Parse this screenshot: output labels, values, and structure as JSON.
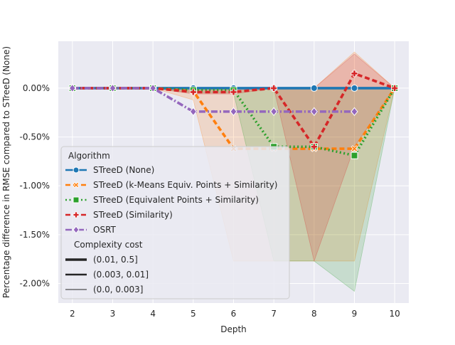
{
  "chart_data": {
    "type": "line",
    "xlabel": "Depth",
    "ylabel": "Percentage difference in RMSE compared to STreeD (None)",
    "x_ticks": [
      2,
      3,
      4,
      5,
      6,
      7,
      8,
      9,
      10
    ],
    "y_ticks": [
      {
        "value": 0.0,
        "label": "0.00%"
      },
      {
        "value": -0.5,
        "label": "-0.50%"
      },
      {
        "value": -1.0,
        "label": "-1.00%"
      },
      {
        "value": -1.5,
        "label": "-1.50%"
      },
      {
        "value": -2.0,
        "label": "-2.00%"
      }
    ],
    "xlim": [
      1.65,
      10.35
    ],
    "ylim": [
      -2.2,
      0.48
    ],
    "grid": true,
    "background": "#eaeaf2",
    "legend_placement": "lower-left",
    "legend_algorithm_title": "Algorithm",
    "legend_cost_title": "Complexity cost",
    "series": [
      {
        "name": "STreeD (None)",
        "color": "#1f77b4",
        "dash": "solid",
        "marker": "circle",
        "x": [
          2,
          3,
          4,
          5,
          6,
          7,
          8,
          9,
          10
        ],
        "y": [
          0,
          0,
          0,
          0,
          0,
          0,
          0,
          0,
          0
        ],
        "band_low": [],
        "band_high": []
      },
      {
        "name": "STreeD (k-Means Equiv. Points + Similarity)",
        "color": "#ff7f0e",
        "dash": "dashed",
        "marker": "x",
        "x": [
          2,
          3,
          4,
          5,
          6,
          7,
          8,
          9,
          10
        ],
        "y": [
          0,
          0,
          0,
          -0.03,
          -0.62,
          -0.62,
          -0.62,
          -0.62,
          0
        ],
        "band_low": [
          0,
          0,
          0,
          -0.12,
          -1.77,
          -1.77,
          -1.77,
          -1.77,
          0
        ],
        "band_high": [
          0,
          0,
          0,
          0,
          0,
          0,
          0,
          0.37,
          0
        ]
      },
      {
        "name": "STreeD (Equivalent Points + Similarity)",
        "color": "#2ca02c",
        "dash": "dotted",
        "marker": "square",
        "x": [
          2,
          3,
          4,
          5,
          6,
          7,
          8,
          9,
          10
        ],
        "y": [
          0,
          0,
          0,
          -0.02,
          -0.02,
          -0.6,
          -0.6,
          -0.69,
          0
        ],
        "band_low": [
          0,
          0,
          0,
          -0.05,
          -0.05,
          -1.77,
          -1.77,
          -2.08,
          0
        ],
        "band_high": [
          0,
          0,
          0,
          0,
          0,
          0,
          0,
          0,
          0
        ]
      },
      {
        "name": "STreeD (Similarity)",
        "color": "#d62728",
        "dash": "dashed",
        "marker": "plus",
        "x": [
          2,
          3,
          4,
          5,
          6,
          7,
          8,
          9,
          10
        ],
        "y": [
          0,
          0,
          0,
          -0.04,
          -0.04,
          0,
          -0.6,
          0.15,
          0
        ],
        "band_low": [
          0,
          0,
          0,
          -0.06,
          -0.06,
          0,
          -1.77,
          -0.6,
          0
        ],
        "band_high": [
          0,
          0,
          0,
          0,
          0,
          0,
          0,
          0.35,
          0
        ]
      },
      {
        "name": "OSRT",
        "color": "#9467bd",
        "dash": "dashdot",
        "marker": "diamond",
        "x": [
          2,
          3,
          4,
          5,
          6,
          7,
          8,
          9
        ],
        "y": [
          0,
          0,
          0,
          -0.24,
          -0.24,
          -0.24,
          -0.24,
          -0.24
        ],
        "band_low": [],
        "band_high": []
      }
    ],
    "cost_levels": [
      {
        "label": "(0.01, 0.5]",
        "width": 3.6
      },
      {
        "label": "(0.003, 0.01]",
        "width": 2.4
      },
      {
        "label": "(0.0, 0.003]",
        "width": 0.9
      }
    ]
  }
}
